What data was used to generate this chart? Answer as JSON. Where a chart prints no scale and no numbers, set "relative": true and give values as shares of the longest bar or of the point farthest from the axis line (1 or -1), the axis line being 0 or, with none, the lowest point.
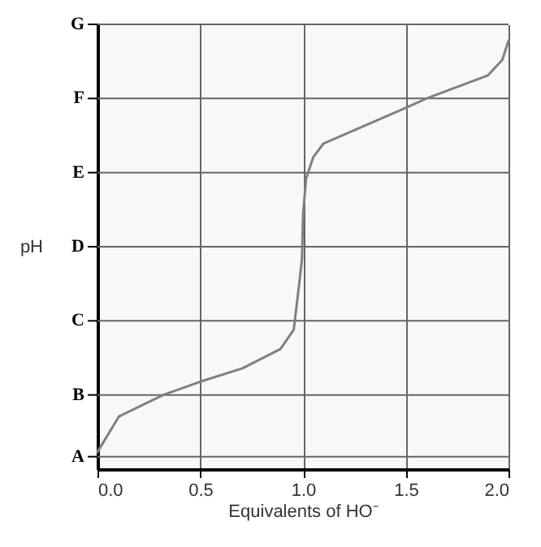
{
  "chart_data": {
    "type": "line",
    "xlabel": "Equivalents of HO⁻",
    "ylabel": "pH",
    "relative": true,
    "x": [
      0,
      0.105,
      0.32,
      0.5,
      0.705,
      0.89,
      0.955,
      0.98,
      0.995,
      1.0,
      1.015,
      1.05,
      1.1,
      1.5,
      1.6,
      1.9,
      1.97,
      2.0
    ],
    "series": [
      {
        "color": "#808080",
        "values": [
          0.04,
          0.123,
          0.173,
          0.204,
          0.235,
          0.28,
          0.325,
          0.426,
          0.49,
          0.592,
          0.678,
          0.728,
          0.76,
          0.843,
          0.865,
          0.919,
          0.955,
          1
        ]
      }
    ],
    "xlim": [
      0,
      2
    ],
    "xticks": [
      {
        "value": 0,
        "label": "0.0"
      },
      {
        "value": 0.5,
        "label": "0.5"
      },
      {
        "value": 1,
        "label": "1.0"
      },
      {
        "value": 1.5,
        "label": "1.5"
      },
      {
        "value": 2,
        "label": "2.0"
      }
    ],
    "ref_lines": [
      {
        "axis": "y",
        "value": 0.029,
        "label": "A",
        "color": "#666666"
      },
      {
        "axis": "y",
        "value": 0.173,
        "label": "B",
        "color": "#666666"
      },
      {
        "axis": "y",
        "value": 0.346,
        "label": "C",
        "color": "#666666"
      },
      {
        "axis": "y",
        "value": 0.519,
        "label": "D",
        "color": "#666666"
      },
      {
        "axis": "y",
        "value": 0.692,
        "label": "E",
        "color": "#666666"
      },
      {
        "axis": "y",
        "value": 0.865,
        "label": "F",
        "color": "#666666"
      },
      {
        "axis": "y",
        "value": 1.038,
        "label": "G",
        "color": "#666666"
      }
    ],
    "grid": "x",
    "line_style": "solid",
    "marker": "none"
  }
}
